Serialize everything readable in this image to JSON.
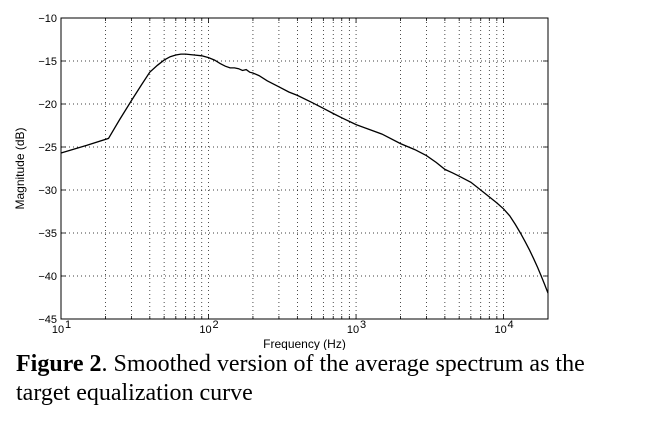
{
  "caption": {
    "label": "Figure 2",
    "text": ". Smoothed version of the average spectrum as the target equalization curve"
  },
  "chart_data": {
    "type": "line",
    "xlabel": "Frequency (Hz)",
    "ylabel": "Magnitude (dB)",
    "xscale": "log",
    "xlim": [
      10,
      20000
    ],
    "ylim": [
      -45,
      -10
    ],
    "grid": true,
    "x_ticks": [
      "10",
      "10",
      "10",
      "10"
    ],
    "x_tick_exponents": [
      "1",
      "2",
      "3",
      "4"
    ],
    "y_ticks": [
      "−10",
      "−15",
      "−20",
      "−25",
      "−30",
      "−35",
      "−40",
      "−45"
    ],
    "series": [
      {
        "x": [
          10,
          15,
          21,
          25,
          30,
          35,
          40,
          45,
          50,
          55,
          60,
          65,
          70,
          80,
          90,
          100,
          110,
          120,
          130,
          140,
          150,
          160,
          170,
          180,
          190,
          200,
          220,
          250,
          300,
          350,
          400,
          500,
          600,
          700,
          800,
          1000,
          1200,
          1500,
          2000,
          2500,
          3000,
          3500,
          4000,
          4500,
          5000,
          6000,
          7000,
          8000,
          9000,
          10000,
          11000,
          12000,
          13000,
          14000,
          15000,
          16000,
          17000,
          18000,
          19000,
          20000
        ],
        "y": [
          -25.7,
          -24.8,
          -24.0,
          -21.8,
          -19.6,
          -17.8,
          -16.3,
          -15.5,
          -14.9,
          -14.5,
          -14.3,
          -14.2,
          -14.2,
          -14.3,
          -14.4,
          -14.6,
          -14.9,
          -15.3,
          -15.6,
          -15.8,
          -15.8,
          -15.9,
          -16.1,
          -16.0,
          -16.3,
          -16.4,
          -16.7,
          -17.3,
          -18.0,
          -18.6,
          -19.0,
          -19.8,
          -20.5,
          -21.1,
          -21.6,
          -22.4,
          -22.9,
          -23.5,
          -24.6,
          -25.3,
          -26.0,
          -26.8,
          -27.6,
          -28.0,
          -28.4,
          -29.1,
          -30.0,
          -30.8,
          -31.5,
          -32.2,
          -33.0,
          -34.0,
          -35.0,
          -36.0,
          -37.0,
          -38.0,
          -39.0,
          -40.0,
          -41.0,
          -42.0
        ]
      }
    ]
  }
}
